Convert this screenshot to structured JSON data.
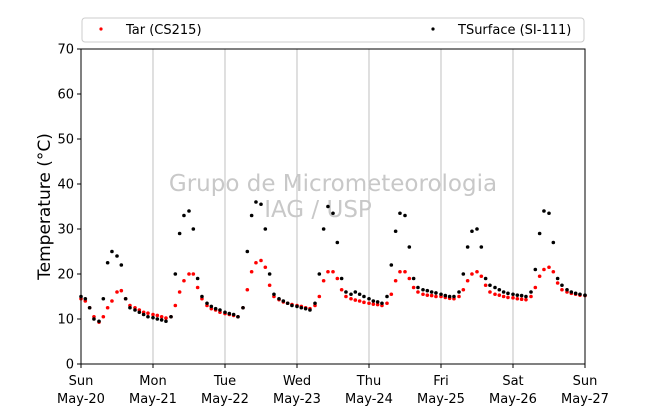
{
  "chart_data": {
    "type": "scatter",
    "ylabel": "Temperature (°C)",
    "ylim": [
      0,
      70
    ],
    "yticks": [
      0,
      10,
      20,
      30,
      40,
      50,
      60,
      70
    ],
    "xlim": [
      0,
      7
    ],
    "x_unit": "days since Sun May-20",
    "xticks": [
      {
        "top": "Sun",
        "bottom": "May-20"
      },
      {
        "top": "Mon",
        "bottom": "May-21"
      },
      {
        "top": "Tue",
        "bottom": "May-22"
      },
      {
        "top": "Wed",
        "bottom": "May-23"
      },
      {
        "top": "Thu",
        "bottom": "May-24"
      },
      {
        "top": "Fri",
        "bottom": "May-25"
      },
      {
        "top": "Sat",
        "bottom": "May-26"
      },
      {
        "top": "Sun",
        "bottom": "May-27"
      }
    ],
    "grid": "vertical",
    "legend_position": "top",
    "watermark": [
      "Grupo de Micrometeorologia",
      "IAG / USP"
    ],
    "series": [
      {
        "name": "Tar (CS215)",
        "color": "#ff0000",
        "x": [
          0.0,
          0.06,
          0.12,
          0.18,
          0.25,
          0.31,
          0.37,
          0.43,
          0.5,
          0.56,
          0.62,
          0.68,
          0.75,
          0.81,
          0.87,
          0.93,
          1.0,
          1.06,
          1.12,
          1.18,
          1.25,
          1.31,
          1.37,
          1.43,
          1.5,
          1.56,
          1.62,
          1.68,
          1.75,
          1.81,
          1.87,
          1.93,
          2.0,
          2.06,
          2.12,
          2.18,
          2.25,
          2.31,
          2.37,
          2.43,
          2.5,
          2.56,
          2.62,
          2.68,
          2.75,
          2.81,
          2.87,
          2.93,
          3.0,
          3.06,
          3.12,
          3.18,
          3.25,
          3.31,
          3.37,
          3.43,
          3.5,
          3.56,
          3.62,
          3.68,
          3.75,
          3.81,
          3.87,
          3.93,
          4.0,
          4.06,
          4.12,
          4.18,
          4.25,
          4.31,
          4.37,
          4.43,
          4.5,
          4.56,
          4.62,
          4.68,
          4.75,
          4.81,
          4.87,
          4.93,
          5.0,
          5.06,
          5.12,
          5.18,
          5.25,
          5.31,
          5.37,
          5.43,
          5.5,
          5.56,
          5.62,
          5.68,
          5.75,
          5.81,
          5.87,
          5.93,
          6.0,
          6.06,
          6.12,
          6.18,
          6.25,
          6.31,
          6.37,
          6.43,
          6.5,
          6.56,
          6.62,
          6.68,
          6.75,
          6.81,
          6.87,
          6.93,
          7.0
        ],
        "y": [
          14.5,
          14.0,
          12.5,
          10.5,
          9.3,
          10.5,
          12.5,
          14.0,
          16.0,
          16.3,
          14.5,
          13.0,
          12.5,
          12.0,
          11.5,
          11.3,
          11.0,
          10.8,
          10.5,
          10.2,
          10.5,
          13.0,
          16.0,
          18.5,
          20.0,
          20.0,
          17.0,
          14.5,
          13.0,
          12.3,
          12.0,
          11.5,
          11.2,
          11.0,
          10.8,
          10.5,
          12.5,
          16.5,
          20.5,
          22.5,
          23.0,
          21.5,
          17.5,
          15.0,
          14.3,
          13.8,
          13.5,
          13.2,
          13.0,
          12.8,
          12.5,
          12.3,
          13.0,
          15.0,
          18.5,
          20.5,
          20.5,
          19.0,
          16.5,
          15.0,
          14.5,
          14.2,
          14.0,
          13.7,
          13.5,
          13.3,
          13.2,
          13.0,
          13.5,
          15.5,
          18.5,
          20.5,
          20.5,
          19.0,
          17.0,
          16.0,
          15.5,
          15.3,
          15.2,
          15.0,
          15.0,
          14.8,
          14.6,
          14.5,
          15.0,
          16.5,
          18.5,
          20.0,
          20.5,
          19.5,
          17.5,
          16.0,
          15.5,
          15.3,
          15.0,
          14.8,
          14.7,
          14.5,
          14.4,
          14.3,
          15.0,
          17.0,
          19.5,
          21.0,
          21.5,
          20.5,
          18.0,
          16.5,
          16.0,
          15.7,
          15.5,
          15.3,
          15.2
        ]
      },
      {
        "name": "TSurface (SI-111)",
        "color": "#000000",
        "x": [
          0.0,
          0.06,
          0.12,
          0.18,
          0.25,
          0.31,
          0.37,
          0.43,
          0.5,
          0.56,
          0.62,
          0.68,
          0.75,
          0.81,
          0.87,
          0.93,
          1.0,
          1.06,
          1.12,
          1.18,
          1.25,
          1.31,
          1.37,
          1.43,
          1.5,
          1.56,
          1.62,
          1.68,
          1.75,
          1.81,
          1.87,
          1.93,
          2.0,
          2.06,
          2.12,
          2.18,
          2.25,
          2.31,
          2.37,
          2.43,
          2.5,
          2.56,
          2.62,
          2.68,
          2.75,
          2.81,
          2.87,
          2.93,
          3.0,
          3.06,
          3.12,
          3.18,
          3.25,
          3.31,
          3.37,
          3.43,
          3.5,
          3.56,
          3.62,
          3.68,
          3.75,
          3.81,
          3.87,
          3.93,
          4.0,
          4.06,
          4.12,
          4.18,
          4.25,
          4.31,
          4.37,
          4.43,
          4.5,
          4.56,
          4.62,
          4.68,
          4.75,
          4.81,
          4.87,
          4.93,
          5.0,
          5.06,
          5.12,
          5.18,
          5.25,
          5.31,
          5.37,
          5.43,
          5.5,
          5.56,
          5.62,
          5.68,
          5.75,
          5.81,
          5.87,
          5.93,
          6.0,
          6.06,
          6.12,
          6.18,
          6.25,
          6.31,
          6.37,
          6.43,
          6.5,
          6.56,
          6.62,
          6.68,
          6.75,
          6.81,
          6.87,
          6.93,
          7.0
        ],
        "y": [
          15.0,
          14.5,
          12.5,
          10.0,
          9.5,
          14.5,
          22.5,
          25.0,
          24.0,
          22.0,
          14.5,
          12.5,
          12.0,
          11.5,
          11.0,
          10.5,
          10.3,
          10.0,
          9.8,
          9.5,
          10.5,
          20.0,
          29.0,
          33.0,
          34.0,
          30.0,
          19.0,
          15.0,
          13.5,
          12.8,
          12.3,
          12.0,
          11.5,
          11.2,
          11.0,
          10.5,
          12.5,
          25.0,
          33.0,
          36.0,
          35.5,
          30.0,
          20.0,
          15.5,
          14.5,
          14.0,
          13.5,
          13.0,
          12.8,
          12.5,
          12.3,
          12.0,
          13.5,
          20.0,
          30.0,
          35.0,
          33.5,
          27.0,
          19.0,
          16.0,
          15.5,
          16.0,
          15.5,
          15.0,
          14.5,
          14.0,
          13.8,
          13.5,
          15.0,
          22.0,
          29.5,
          33.5,
          33.0,
          26.0,
          19.0,
          17.0,
          16.5,
          16.3,
          16.0,
          15.8,
          15.5,
          15.2,
          15.0,
          15.0,
          16.0,
          20.0,
          26.0,
          29.5,
          30.0,
          26.0,
          19.0,
          17.5,
          17.0,
          16.5,
          16.0,
          15.7,
          15.5,
          15.3,
          15.2,
          15.0,
          16.0,
          21.0,
          29.0,
          34.0,
          33.5,
          27.0,
          19.0,
          17.5,
          16.5,
          16.0,
          15.7,
          15.5,
          15.3
        ]
      }
    ]
  }
}
